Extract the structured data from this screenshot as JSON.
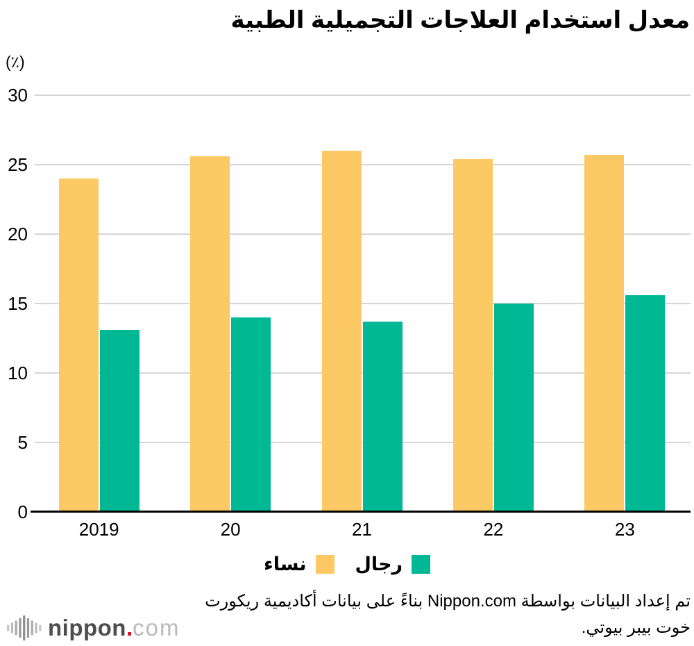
{
  "title": "معدل استخدام العلاجات التجميلية الطبية",
  "y_axis": {
    "unit": "(٪)"
  },
  "chart_data": {
    "type": "bar",
    "title": "معدل استخدام العلاجات التجميلية الطبية",
    "categories": [
      "2019",
      "20",
      "21",
      "22",
      "23"
    ],
    "series": [
      {
        "key": "women",
        "name": "نساء",
        "color": "#FCC964",
        "values": [
          24.0,
          25.6,
          26.0,
          25.4,
          25.7
        ]
      },
      {
        "key": "men",
        "name": "رجال",
        "color": "#00B893",
        "values": [
          13.1,
          14.0,
          13.7,
          15.0,
          15.6
        ]
      }
    ],
    "xlabel": "",
    "ylabel": "(٪)",
    "ylim": [
      0,
      30
    ],
    "yticks": [
      0,
      5,
      10,
      15,
      20,
      25,
      30
    ],
    "grid": true,
    "legend_position": "bottom-center",
    "legend_order_rtl": [
      "رجال",
      "نساء"
    ]
  },
  "colors": {
    "gridline": "#D4D4D4",
    "axis": "#000000",
    "logo_red": "#E60012",
    "logo_gray": "#4D4D4D",
    "logo_light_gray": "#B9B9B9"
  },
  "footer": {
    "lines": [
      "تم إعداد البيانات بواسطة Nippon.com بناءً على بيانات أكاديمية ريكورت",
      "خوت بيبر بيوتي."
    ]
  },
  "logo": {
    "name": "nippon",
    "dot": ".",
    "tld": "com"
  }
}
